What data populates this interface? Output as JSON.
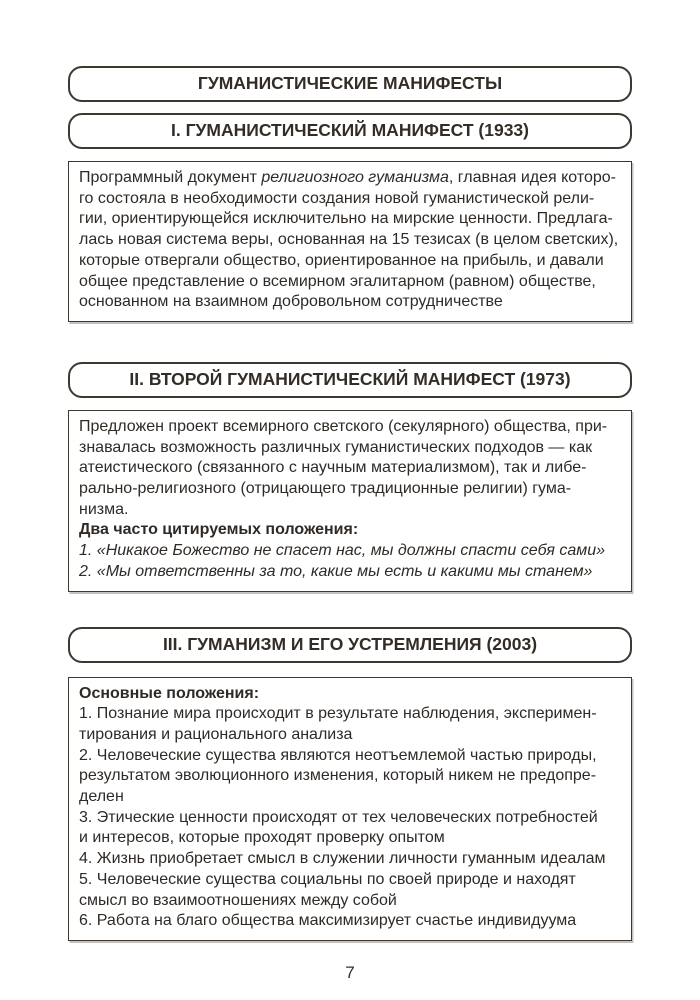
{
  "page_number": "7",
  "main_title": "ГУМАНИСТИЧЕСКИЕ МАНИФЕСТЫ",
  "sections": [
    {
      "heading": "I. ГУМАНИСТИЧЕСКИЙ МАНИФЕСТ (1933)",
      "lead": "Программный документ ",
      "italic_term": "религиозного гуманизма",
      "rest": ", главная идея которо-\nго состояла в необходимости создания новой гуманистической рели-\nгии, ориентирующейся исключительно на мирские ценности. Предлага-\nлась новая система веры, основанная на 15 тезисах (в целом светских),\nкоторые отвергали общество, ориентированное на прибыль, и давали\nобщее представление о всемирном эгалитарном (равном) обществе,\nоснованном на взаимном добровольном сотрудничестве"
    },
    {
      "heading": "II. ВТОРОЙ ГУМАНИСТИЧЕСКИЙ МАНИФЕСТ (1973)",
      "text": "Предложен проект всемирного светского (секулярного) общества, при-\nзнавалась возможность различных гуманистических подходов — как\nатеистического (связанного с научным материализмом), так и либе-\nрально-религиозного (отрицающего традиционные религии) гума-\nнизма.",
      "subheading": "Два часто цитируемых положения:",
      "quotes": [
        "1. «Никакое Божество не спасет нас, мы должны спасти себя сами»",
        "2. «Мы ответственны за то, какие мы есть и какими мы станем»"
      ]
    },
    {
      "heading": "III. ГУМАНИЗМ И ЕГО УСТРЕМЛЕНИЯ (2003)",
      "subheading": "Основные положения:",
      "items": [
        "1. Познание мира происходит в результате наблюдения, эксперимен-\nтирования и рационального анализа",
        "2. Человеческие существа являются неотъемлемой частью природы,\nрезультатом эволюционного изменения, который никем не предопре-\nделен",
        "3. Этические ценности происходят от тех человеческих потребностей\nи интересов, которые проходят проверку опытом",
        "4. Жизнь приобретает смысл в служении личности гуманным идеалам",
        "5. Человеческие существа социальны по своей природе и находят\nсмысл во взаимоотношениях между собой",
        "6. Работа на благо общества максимизирует счастье индивидуума"
      ]
    }
  ]
}
